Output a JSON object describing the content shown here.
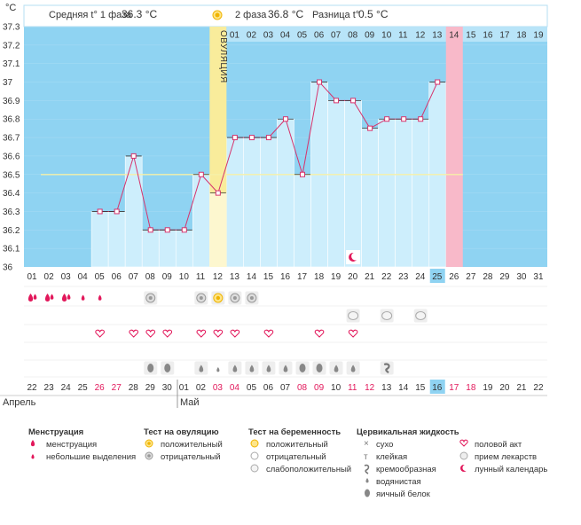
{
  "unit": "°C",
  "header": {
    "phase1_label": "Средняя t° 1 фаза",
    "phase1_value": "36.3 °C",
    "phase2_label": "2 фаза",
    "phase2_value": "36.8 °C",
    "diff_label": "Разница t°",
    "diff_value": "0.5 °C"
  },
  "ovulation_label": "ОВУЛЯЦИЯ",
  "chart_data": {
    "type": "bar",
    "ylim": [
      36,
      37.3
    ],
    "yticks": [
      "37.3",
      "37.2",
      "37.1",
      "37",
      "36.9",
      "36.8",
      "36.7",
      "36.6",
      "36.5",
      "36.4",
      "36.3",
      "36.2",
      "36.1",
      "36"
    ],
    "coverline": 36.5,
    "ovulation_day": 12,
    "highlight_day": 25,
    "next_cycle_day": 26,
    "x": [
      "01",
      "02",
      "03",
      "04",
      "05",
      "06",
      "07",
      "08",
      "09",
      "10",
      "11",
      "12",
      "13",
      "14",
      "15",
      "16",
      "17",
      "18",
      "19",
      "20",
      "21",
      "22",
      "23",
      "24",
      "25",
      "26",
      "27",
      "28",
      "29",
      "30",
      "31"
    ],
    "values": [
      null,
      null,
      null,
      null,
      36.3,
      36.3,
      36.6,
      36.2,
      36.2,
      36.2,
      36.5,
      36.4,
      36.7,
      36.7,
      36.7,
      36.8,
      36.5,
      37.0,
      36.9,
      36.9,
      36.75,
      36.8,
      36.8,
      36.8,
      37.0,
      null,
      null,
      null,
      null,
      null,
      null
    ],
    "phase2_days": [
      "01",
      "02",
      "03",
      "04",
      "05",
      "06",
      "07",
      "08",
      "09",
      "10",
      "11",
      "12",
      "13",
      "14",
      "15",
      "16",
      "17",
      "18",
      "19"
    ],
    "phase2_highlight": "14",
    "calendar_days": [
      "22",
      "23",
      "24",
      "25",
      "26",
      "27",
      "28",
      "29",
      "30",
      "01",
      "02",
      "03",
      "04",
      "05",
      "06",
      "07",
      "08",
      "09",
      "10",
      "11",
      "12",
      "13",
      "14",
      "15",
      "16",
      "17",
      "18",
      "19",
      "20",
      "21",
      "22"
    ],
    "calendar_red": [
      4,
      5,
      11,
      12,
      16,
      17,
      19,
      20,
      25,
      26
    ],
    "calendar_highlight": 24,
    "month_april": "Апрель",
    "month_may": "Май"
  },
  "markers": {
    "menstruation": [
      0,
      1,
      2
    ],
    "small_bleed": [
      3,
      4
    ],
    "ovulation_neg": [
      7,
      10,
      12,
      13
    ],
    "ovulation_pos": [
      11
    ],
    "pregnancy_weak": [
      19,
      21,
      23
    ],
    "intercourse": [
      4,
      6,
      7,
      8,
      10,
      11,
      12,
      14,
      17,
      19
    ],
    "fluid_eggwhite": [
      7,
      8,
      16,
      17
    ],
    "fluid_watery": [
      10,
      12,
      13,
      14,
      15,
      18,
      19
    ],
    "fluid_sticky_dot": [
      11
    ],
    "fluid_creamy": [
      21
    ],
    "moon": [
      19
    ]
  },
  "legend": {
    "menstr_title": "Менструация",
    "menstr_items": [
      "менструация",
      "небольшие выделения"
    ],
    "ovul_title": "Тест на овуляцию",
    "ovul_items": [
      "положительный",
      "отрицательный"
    ],
    "preg_title": "Тест на беременность",
    "preg_items": [
      "положительный",
      "отрицательный",
      "слабоположительный"
    ],
    "fluid_title": "Цервикальная жидкость",
    "fluid_items": [
      "сухо",
      "клейкая",
      "кремообразная",
      "водянистая",
      "яичный белок"
    ],
    "other_items": [
      "половой акт",
      "прием лекарств",
      "лунный календарь"
    ]
  }
}
